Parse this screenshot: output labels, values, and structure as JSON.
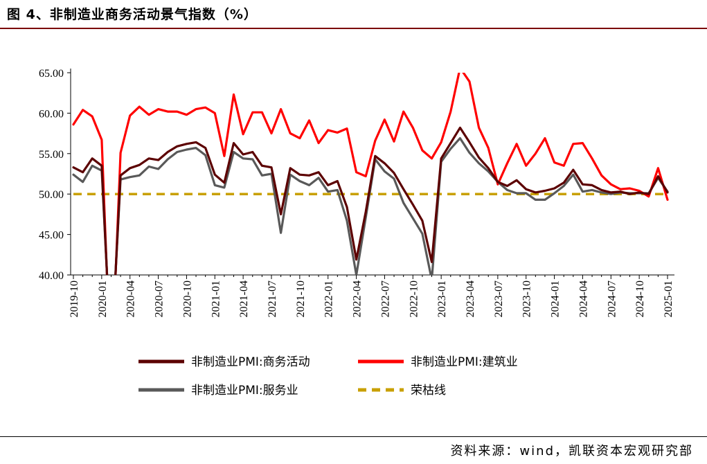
{
  "title": "图 4、非制造业商务活动景气指数（%）",
  "source": "资料来源：wind，凯联资本宏观研究部",
  "colors": {
    "business": "#5c0000",
    "construction": "#ff0000",
    "services": "#595959",
    "threshold": "#c8a000"
  },
  "chart_data": {
    "type": "line",
    "ylim": [
      40,
      65
    ],
    "yticks": [
      "40.00",
      "45.00",
      "50.00",
      "55.00",
      "60.00",
      "65.00"
    ],
    "x": [
      "2019-10",
      "2019-11",
      "2019-12",
      "2020-01",
      "2020-02",
      "2020-03",
      "2020-04",
      "2020-05",
      "2020-06",
      "2020-07",
      "2020-08",
      "2020-09",
      "2020-10",
      "2020-11",
      "2020-12",
      "2021-01",
      "2021-02",
      "2021-03",
      "2021-04",
      "2021-05",
      "2021-06",
      "2021-07",
      "2021-08",
      "2021-09",
      "2021-10",
      "2021-11",
      "2021-12",
      "2022-01",
      "2022-02",
      "2022-03",
      "2022-04",
      "2022-05",
      "2022-06",
      "2022-07",
      "2022-08",
      "2022-09",
      "2022-10",
      "2022-11",
      "2022-12",
      "2023-01",
      "2023-02",
      "2023-03",
      "2023-04",
      "2023-05",
      "2023-06",
      "2023-07",
      "2023-08",
      "2023-09",
      "2023-10",
      "2023-11",
      "2023-12",
      "2024-01",
      "2024-02",
      "2024-03",
      "2024-04",
      "2024-05",
      "2024-06",
      "2024-07",
      "2024-08",
      "2024-09",
      "2024-10",
      "2024-11",
      "2024-12",
      "2025-01"
    ],
    "xticks": [
      "2019-10",
      "2020-01",
      "2020-04",
      "2020-07",
      "2020-10",
      "2021-01",
      "2021-04",
      "2021-07",
      "2021-10",
      "2022-01",
      "2022-04",
      "2022-07",
      "2022-10",
      "2023-01",
      "2023-04",
      "2023-07",
      "2023-10",
      "2024-01",
      "2024-04",
      "2024-07",
      "2024-10",
      "2025-01"
    ],
    "series": [
      {
        "name": "非制造业PMI:商务活动",
        "key": "business",
        "values": [
          53.3,
          52.7,
          54.4,
          53.5,
          29.6,
          52.3,
          53.2,
          53.6,
          54.4,
          54.2,
          55.2,
          55.9,
          56.2,
          56.4,
          55.7,
          52.4,
          51.4,
          56.3,
          54.9,
          55.2,
          53.5,
          53.3,
          47.5,
          53.2,
          52.4,
          52.3,
          52.7,
          51.1,
          51.6,
          48.4,
          41.9,
          47.8,
          54.7,
          53.8,
          52.6,
          50.6,
          48.7,
          46.7,
          41.6,
          54.4,
          56.3,
          58.2,
          56.4,
          54.5,
          53.2,
          51.5,
          51.0,
          51.7,
          50.6,
          50.2,
          50.4,
          50.7,
          51.4,
          53.0,
          51.2,
          51.1,
          50.5,
          50.2,
          50.3,
          50.0,
          50.2,
          50.0,
          52.2,
          50.2
        ]
      },
      {
        "name": "非制造业PMI:建筑业",
        "key": "construction",
        "values": [
          58.6,
          60.4,
          59.6,
          56.7,
          26.6,
          55.1,
          59.7,
          60.8,
          59.8,
          60.5,
          60.2,
          60.2,
          59.8,
          60.5,
          60.7,
          60.0,
          54.7,
          62.3,
          57.4,
          60.1,
          60.1,
          57.5,
          60.5,
          57.5,
          56.9,
          59.1,
          56.3,
          57.9,
          57.6,
          58.1,
          52.7,
          52.2,
          56.6,
          59.2,
          56.5,
          60.2,
          58.2,
          55.4,
          54.4,
          56.4,
          60.2,
          65.6,
          63.9,
          58.2,
          55.7,
          51.2,
          53.8,
          56.2,
          53.5,
          55.0,
          56.9,
          53.9,
          53.5,
          56.2,
          56.3,
          54.4,
          52.3,
          51.2,
          50.6,
          50.7,
          50.4,
          49.7,
          53.2,
          49.3
        ]
      },
      {
        "name": "非制造业PMI:服务业",
        "key": "services",
        "values": [
          52.4,
          51.5,
          53.5,
          52.9,
          30.1,
          51.8,
          52.1,
          52.3,
          53.4,
          53.1,
          54.3,
          55.2,
          55.5,
          55.7,
          54.8,
          51.1,
          50.8,
          55.2,
          54.4,
          54.3,
          52.3,
          52.5,
          45.2,
          52.4,
          51.6,
          51.1,
          52.0,
          50.3,
          50.5,
          46.7,
          40.0,
          47.1,
          54.3,
          52.8,
          51.9,
          48.9,
          47.0,
          45.1,
          39.4,
          54.0,
          55.6,
          56.9,
          55.1,
          53.8,
          52.8,
          51.5,
          50.5,
          50.1,
          50.1,
          49.3,
          49.3,
          50.1,
          51.0,
          52.4,
          50.3,
          50.5,
          50.2,
          50.0,
          50.2,
          50.1,
          50.1,
          50.1,
          52.0,
          50.3
        ]
      },
      {
        "name": "荣枯线",
        "key": "threshold",
        "dashed": true,
        "values": [
          50,
          50,
          50,
          50,
          50,
          50,
          50,
          50,
          50,
          50,
          50,
          50,
          50,
          50,
          50,
          50,
          50,
          50,
          50,
          50,
          50,
          50,
          50,
          50,
          50,
          50,
          50,
          50,
          50,
          50,
          50,
          50,
          50,
          50,
          50,
          50,
          50,
          50,
          50,
          50,
          50,
          50,
          50,
          50,
          50,
          50,
          50,
          50,
          50,
          50,
          50,
          50,
          50,
          50,
          50,
          50,
          50,
          50,
          50,
          50,
          50,
          50,
          50,
          50
        ]
      }
    ],
    "legend": [
      "非制造业PMI:商务活动",
      "非制造业PMI:建筑业",
      "非制造业PMI:服务业",
      "荣枯线"
    ]
  }
}
